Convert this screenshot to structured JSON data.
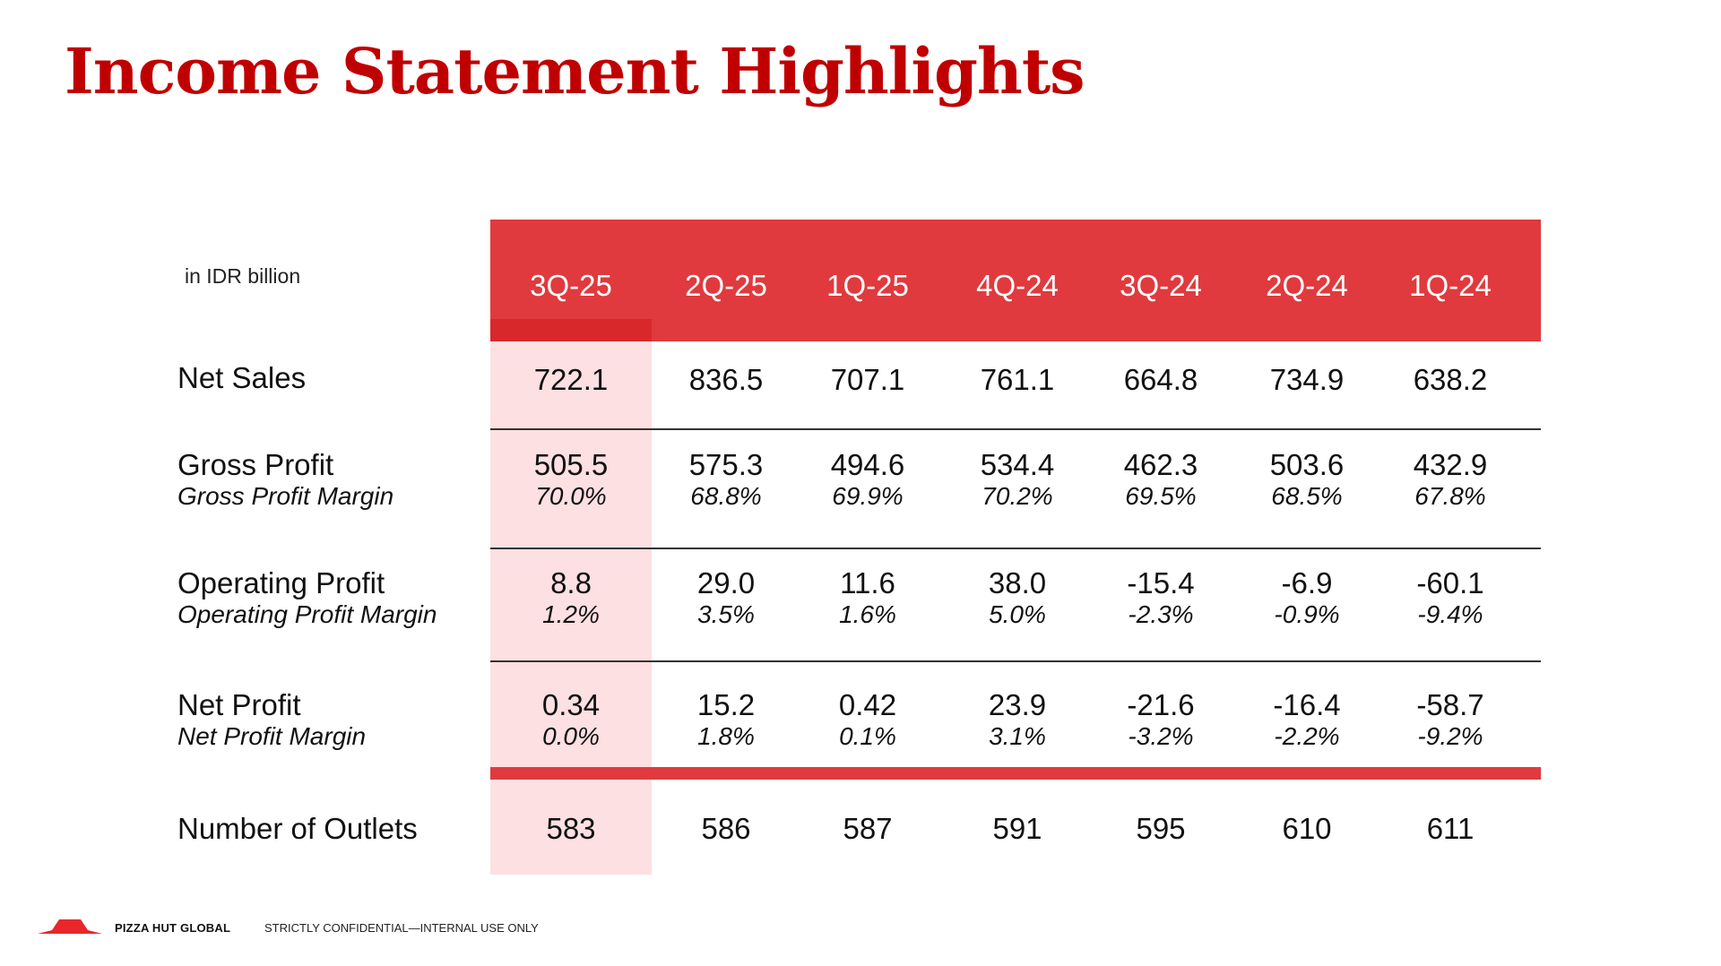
{
  "title": "Income Statement Highlights",
  "units_note": "in IDR billion",
  "periods": [
    "3Q-25",
    "2Q-25",
    "1Q-25",
    "4Q-24",
    "3Q-24",
    "2Q-24",
    "1Q-24"
  ],
  "rows": {
    "net_sales": {
      "label": "Net Sales",
      "values": [
        "722.1",
        "836.5",
        "707.1",
        "761.1",
        "664.8",
        "734.9",
        "638.2"
      ]
    },
    "gross_profit": {
      "label": "Gross Profit",
      "sublabel": "Gross Profit Margin",
      "values": [
        "505.5",
        "575.3",
        "494.6",
        "534.4",
        "462.3",
        "503.6",
        "432.9"
      ],
      "margins": [
        "70.0%",
        "68.8%",
        "69.9%",
        "70.2%",
        "69.5%",
        "68.5%",
        "67.8%"
      ]
    },
    "operating_profit": {
      "label": "Operating Profit",
      "sublabel": "Operating Profit Margin",
      "values": [
        "8.8",
        "29.0",
        "11.6",
        "38.0",
        "-15.4",
        "-6.9",
        "-60.1"
      ],
      "margins": [
        "1.2%",
        "3.5%",
        "1.6%",
        "5.0%",
        "-2.3%",
        "-0.9%",
        "-9.4%"
      ]
    },
    "net_profit": {
      "label": "Net Profit",
      "sublabel": "Net Profit Margin",
      "values": [
        "0.34",
        "15.2",
        "0.42",
        "23.9",
        "-21.6",
        "-16.4",
        "-58.7"
      ],
      "margins": [
        "0.0%",
        "1.8%",
        "0.1%",
        "3.1%",
        "-3.2%",
        "-2.2%",
        "-9.2%"
      ]
    },
    "outlets": {
      "label": "Number of Outlets",
      "values": [
        "583",
        "586",
        "587",
        "591",
        "595",
        "610",
        "611"
      ]
    }
  },
  "footer": {
    "brand": "PIZZA HUT GLOBAL",
    "note": "STRICTLY CONFIDENTIAL—INTERNAL USE ONLY",
    "logo_icon": "pizza-hut-roof-icon"
  },
  "colors": {
    "title": "#c00000",
    "header_band": "#e03a3e",
    "highlight_column": "#fde0e1",
    "highlight_accent": "#d9282c"
  }
}
